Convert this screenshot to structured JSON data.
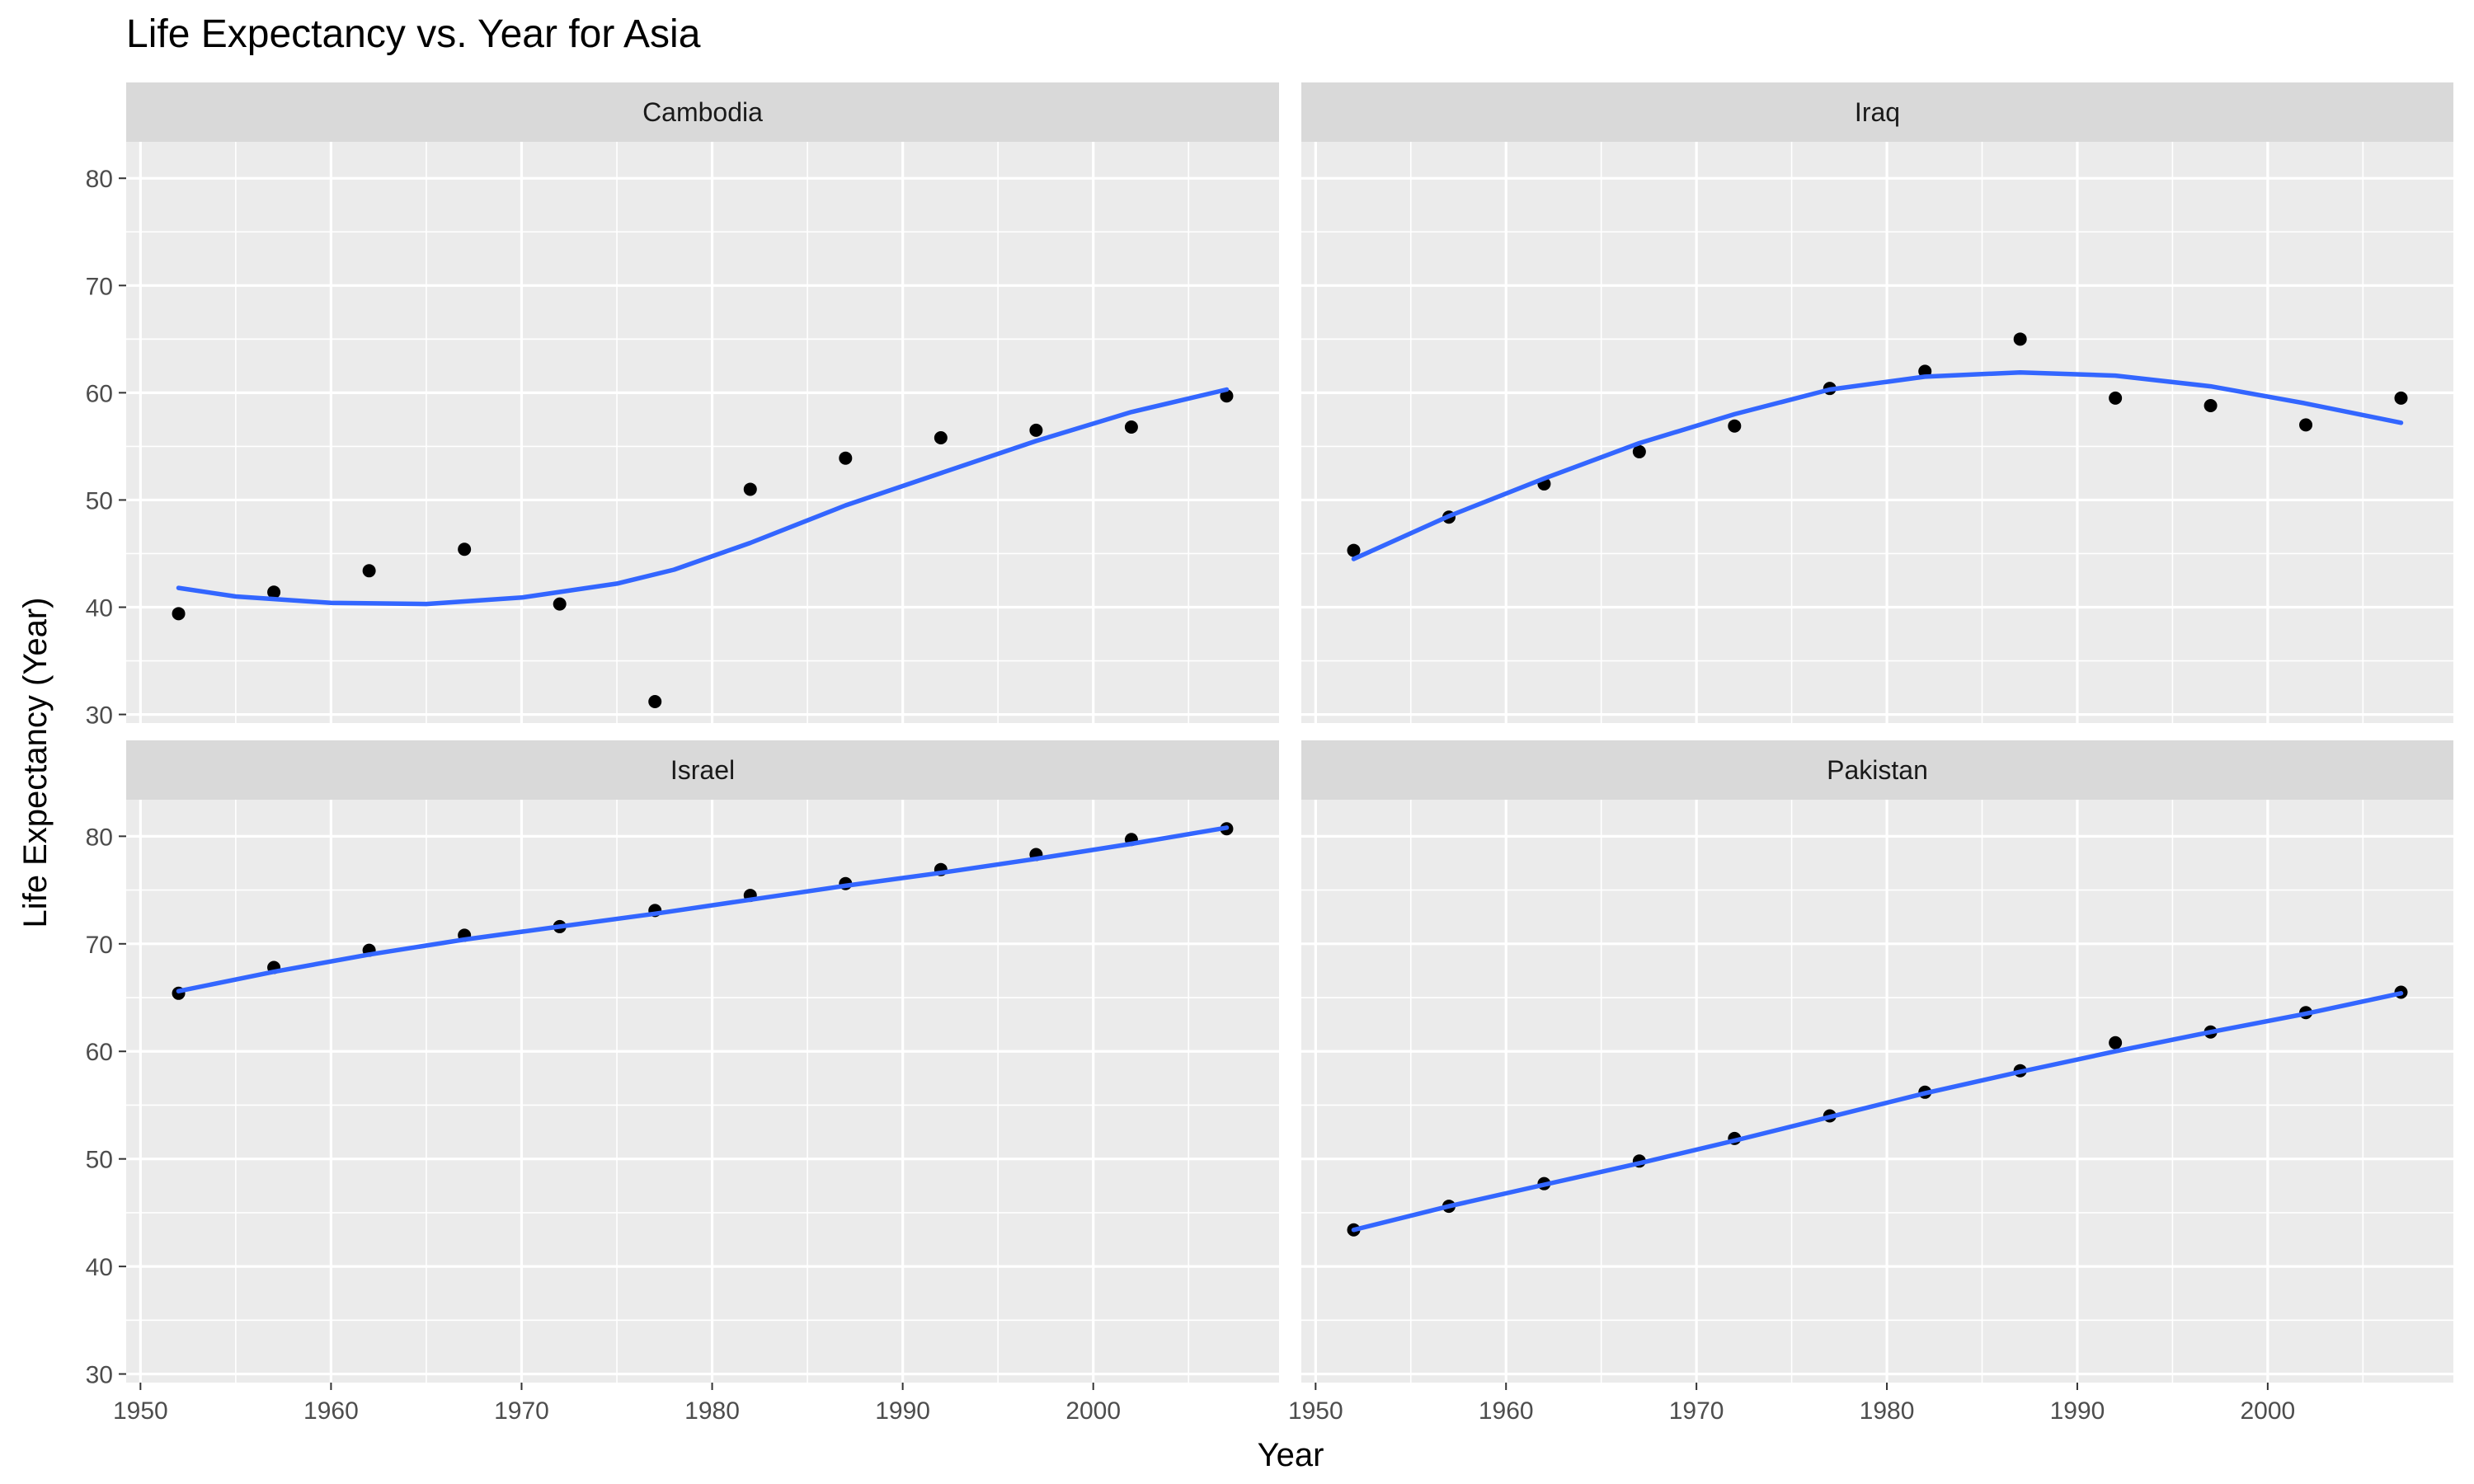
{
  "chart_data": {
    "type": "scatter",
    "title": "Life Expectancy vs. Year for Asia",
    "xlabel": "Year",
    "ylabel": "Life Expectancy (Year)",
    "xlim": [
      1949.25,
      2009.75
    ],
    "ylim": [
      29.2,
      83.4
    ],
    "x_ticks": [
      1950,
      1960,
      1970,
      1980,
      1990,
      2000
    ],
    "y_ticks": [
      30,
      40,
      50,
      60,
      70,
      80
    ],
    "grid": true,
    "smooth_color": "#3366ff",
    "point_color": "#000000",
    "panel_background": "#ebebeb",
    "strip_background": "#d9d9d9",
    "facets": [
      {
        "label": "Cambodia",
        "x": [
          1952,
          1957,
          1962,
          1967,
          1972,
          1977,
          1982,
          1987,
          1992,
          1997,
          2002,
          2007
        ],
        "y": [
          39.4,
          41.4,
          43.4,
          45.4,
          40.3,
          31.2,
          51.0,
          53.9,
          55.8,
          56.5,
          56.8,
          59.7
        ],
        "smooth": [
          [
            1952,
            41.8
          ],
          [
            1955,
            41.0
          ],
          [
            1960,
            40.4
          ],
          [
            1965,
            40.3
          ],
          [
            1970,
            40.9
          ],
          [
            1975,
            42.2
          ],
          [
            1978,
            43.5
          ],
          [
            1982,
            46.0
          ],
          [
            1987,
            49.5
          ],
          [
            1992,
            52.5
          ],
          [
            1997,
            55.5
          ],
          [
            2002,
            58.2
          ],
          [
            2007,
            60.3
          ]
        ]
      },
      {
        "label": "Iraq",
        "x": [
          1952,
          1957,
          1962,
          1967,
          1972,
          1977,
          1982,
          1987,
          1992,
          1997,
          2002,
          2007
        ],
        "y": [
          45.3,
          48.4,
          51.5,
          54.5,
          56.9,
          60.4,
          62.0,
          65.0,
          59.5,
          58.8,
          57.0,
          59.5
        ],
        "smooth": [
          [
            1952,
            44.5
          ],
          [
            1957,
            48.5
          ],
          [
            1962,
            52.0
          ],
          [
            1967,
            55.3
          ],
          [
            1972,
            58.0
          ],
          [
            1977,
            60.3
          ],
          [
            1982,
            61.5
          ],
          [
            1987,
            61.9
          ],
          [
            1992,
            61.6
          ],
          [
            1997,
            60.6
          ],
          [
            2002,
            59.0
          ],
          [
            2007,
            57.2
          ]
        ]
      },
      {
        "label": "Israel",
        "x": [
          1952,
          1957,
          1962,
          1967,
          1972,
          1977,
          1982,
          1987,
          1992,
          1997,
          2002,
          2007
        ],
        "y": [
          65.4,
          67.8,
          69.4,
          70.8,
          71.6,
          73.1,
          74.5,
          75.6,
          76.9,
          78.3,
          79.7,
          80.7
        ],
        "smooth": [
          [
            1952,
            65.6
          ],
          [
            1957,
            67.4
          ],
          [
            1962,
            69.0
          ],
          [
            1967,
            70.4
          ],
          [
            1972,
            71.6
          ],
          [
            1977,
            72.8
          ],
          [
            1982,
            74.1
          ],
          [
            1987,
            75.4
          ],
          [
            1992,
            76.6
          ],
          [
            1997,
            77.9
          ],
          [
            2002,
            79.3
          ],
          [
            2007,
            80.8
          ]
        ]
      },
      {
        "label": "Pakistan",
        "x": [
          1952,
          1957,
          1962,
          1967,
          1972,
          1977,
          1982,
          1987,
          1992,
          1997,
          2002,
          2007
        ],
        "y": [
          43.4,
          45.6,
          47.7,
          49.8,
          51.9,
          54.0,
          56.2,
          58.2,
          60.8,
          61.8,
          63.6,
          65.5
        ],
        "smooth": [
          [
            1952,
            43.4
          ],
          [
            1957,
            45.6
          ],
          [
            1962,
            47.6
          ],
          [
            1967,
            49.6
          ],
          [
            1972,
            51.7
          ],
          [
            1977,
            53.9
          ],
          [
            1982,
            56.1
          ],
          [
            1987,
            58.1
          ],
          [
            1992,
            60.0
          ],
          [
            1997,
            61.8
          ],
          [
            2002,
            63.5
          ],
          [
            2007,
            65.4
          ]
        ]
      }
    ]
  }
}
